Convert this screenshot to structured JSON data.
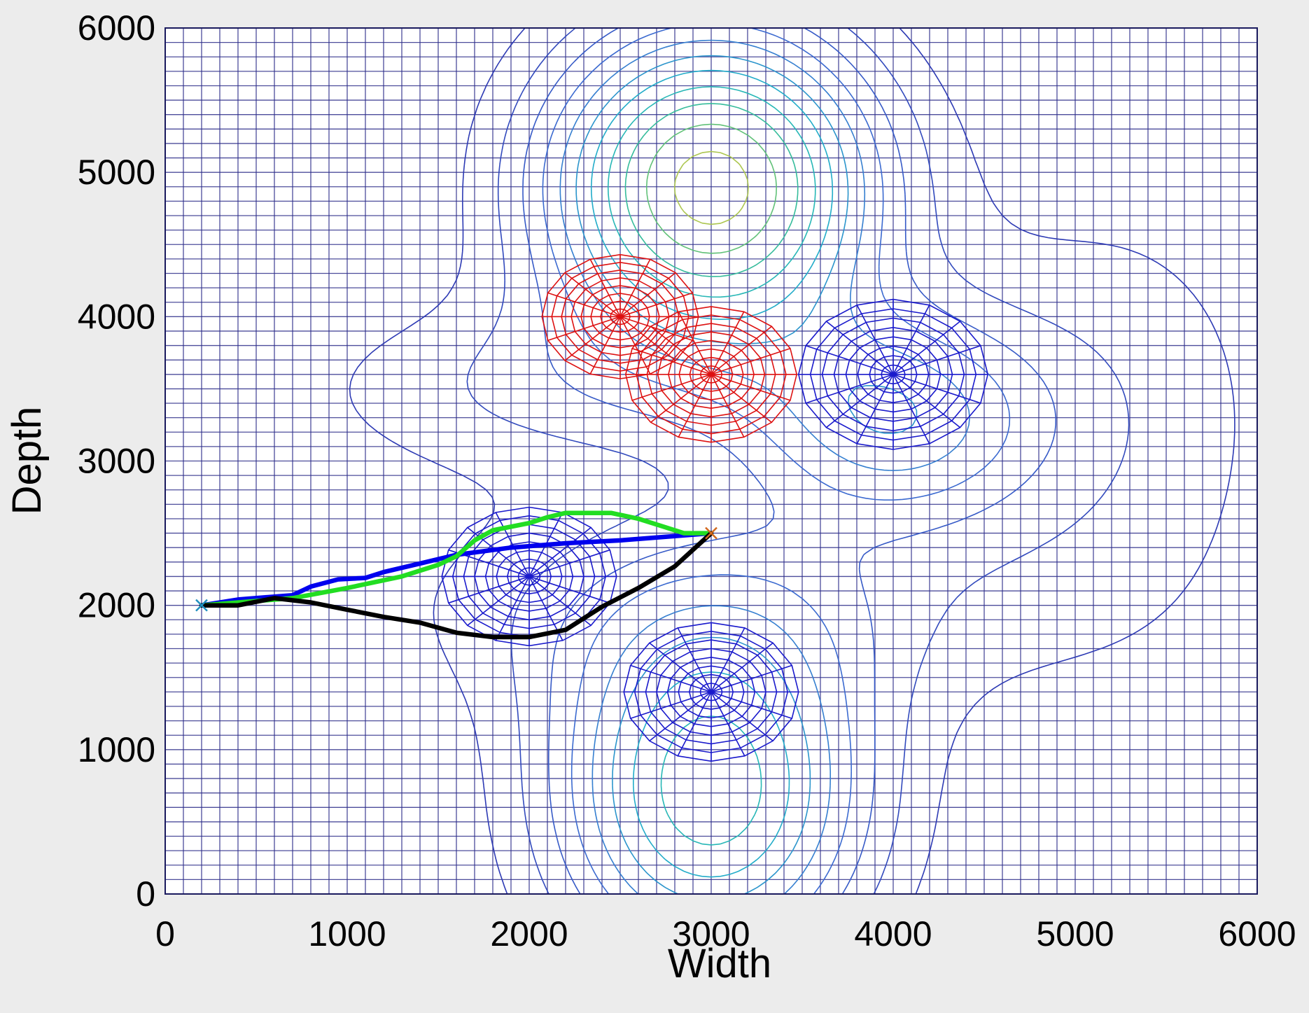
{
  "chart_data": {
    "type": "line",
    "title": "",
    "xlabel": "Width",
    "ylabel": "Depth",
    "xlim": [
      0,
      6000
    ],
    "ylim": [
      0,
      6000
    ],
    "xticks": [
      "0",
      "1000",
      "2000",
      "3000",
      "4000",
      "5000",
      "6000"
    ],
    "yticks": [
      "0",
      "1000",
      "2000",
      "3000",
      "4000",
      "5000",
      "6000"
    ],
    "grid": true,
    "grid_step": 100,
    "grid_color": "#2e2e8a",
    "background_color": "#ececec",
    "plot_color": "#ffffff",
    "start_point": {
      "x": 200,
      "y": 2000,
      "color": "#1f8fbf"
    },
    "goal_point": {
      "x": 3000,
      "y": 2500,
      "color": "#d2691e"
    },
    "series": [
      {
        "color": "#0000ee",
        "x": [
          200,
          400,
          700,
          800,
          950,
          1100,
          1200,
          1400,
          1600,
          1900,
          2200,
          2500,
          2800,
          3000
        ],
        "y": [
          2000,
          2040,
          2070,
          2130,
          2180,
          2190,
          2230,
          2290,
          2350,
          2400,
          2430,
          2450,
          2480,
          2500
        ]
      },
      {
        "color": "#22dd22",
        "x": [
          200,
          500,
          700,
          1000,
          1300,
          1500,
          1600,
          1700,
          1800,
          2000,
          2100,
          2200,
          2450,
          2600,
          2750,
          2850,
          3000
        ],
        "y": [
          2000,
          2030,
          2050,
          2120,
          2200,
          2280,
          2340,
          2450,
          2520,
          2570,
          2610,
          2640,
          2640,
          2600,
          2540,
          2500,
          2500
        ]
      },
      {
        "color": "#000000",
        "x": [
          200,
          400,
          600,
          800,
          1000,
          1200,
          1400,
          1600,
          1800,
          2000,
          2200,
          2400,
          2600,
          2800,
          3000
        ],
        "y": [
          2000,
          2000,
          2050,
          2020,
          1970,
          1920,
          1880,
          1810,
          1780,
          1780,
          1830,
          1990,
          2120,
          2270,
          2500
        ]
      }
    ],
    "obstacles": [
      {
        "cx": 2000,
        "cy": 2200,
        "rx": 480,
        "ry": 480,
        "color": "#1a1acc"
      },
      {
        "cx": 3000,
        "cy": 1400,
        "rx": 480,
        "ry": 480,
        "color": "#1a1acc"
      },
      {
        "cx": 4000,
        "cy": 3600,
        "rx": 520,
        "ry": 520,
        "color": "#1a1acc"
      },
      {
        "cx": 2500,
        "cy": 4000,
        "rx": 430,
        "ry": 430,
        "color": "#dd1111"
      },
      {
        "cx": 3000,
        "cy": 3600,
        "rx": 470,
        "ry": 470,
        "color": "#dd1111"
      }
    ],
    "peaks": [
      {
        "cx": 3000,
        "cy": 4900,
        "sx": 620,
        "sy": 760,
        "amp": 1.0
      },
      {
        "cx": 3000,
        "cy": 700,
        "sx": 600,
        "sy": 850,
        "amp": 0.72
      },
      {
        "cx": 4000,
        "cy": 3300,
        "sx": 560,
        "sy": 520,
        "amp": 0.42
      },
      {
        "cx": 2000,
        "cy": 3500,
        "sx": 900,
        "sy": 450,
        "amp": 0.16
      },
      {
        "cx": 3000,
        "cy": 2000,
        "sx": 1200,
        "sy": 550,
        "amp": 0.18
      },
      {
        "cx": 5200,
        "cy": 3300,
        "sx": 700,
        "sy": 1200,
        "amp": 0.14
      }
    ]
  }
}
